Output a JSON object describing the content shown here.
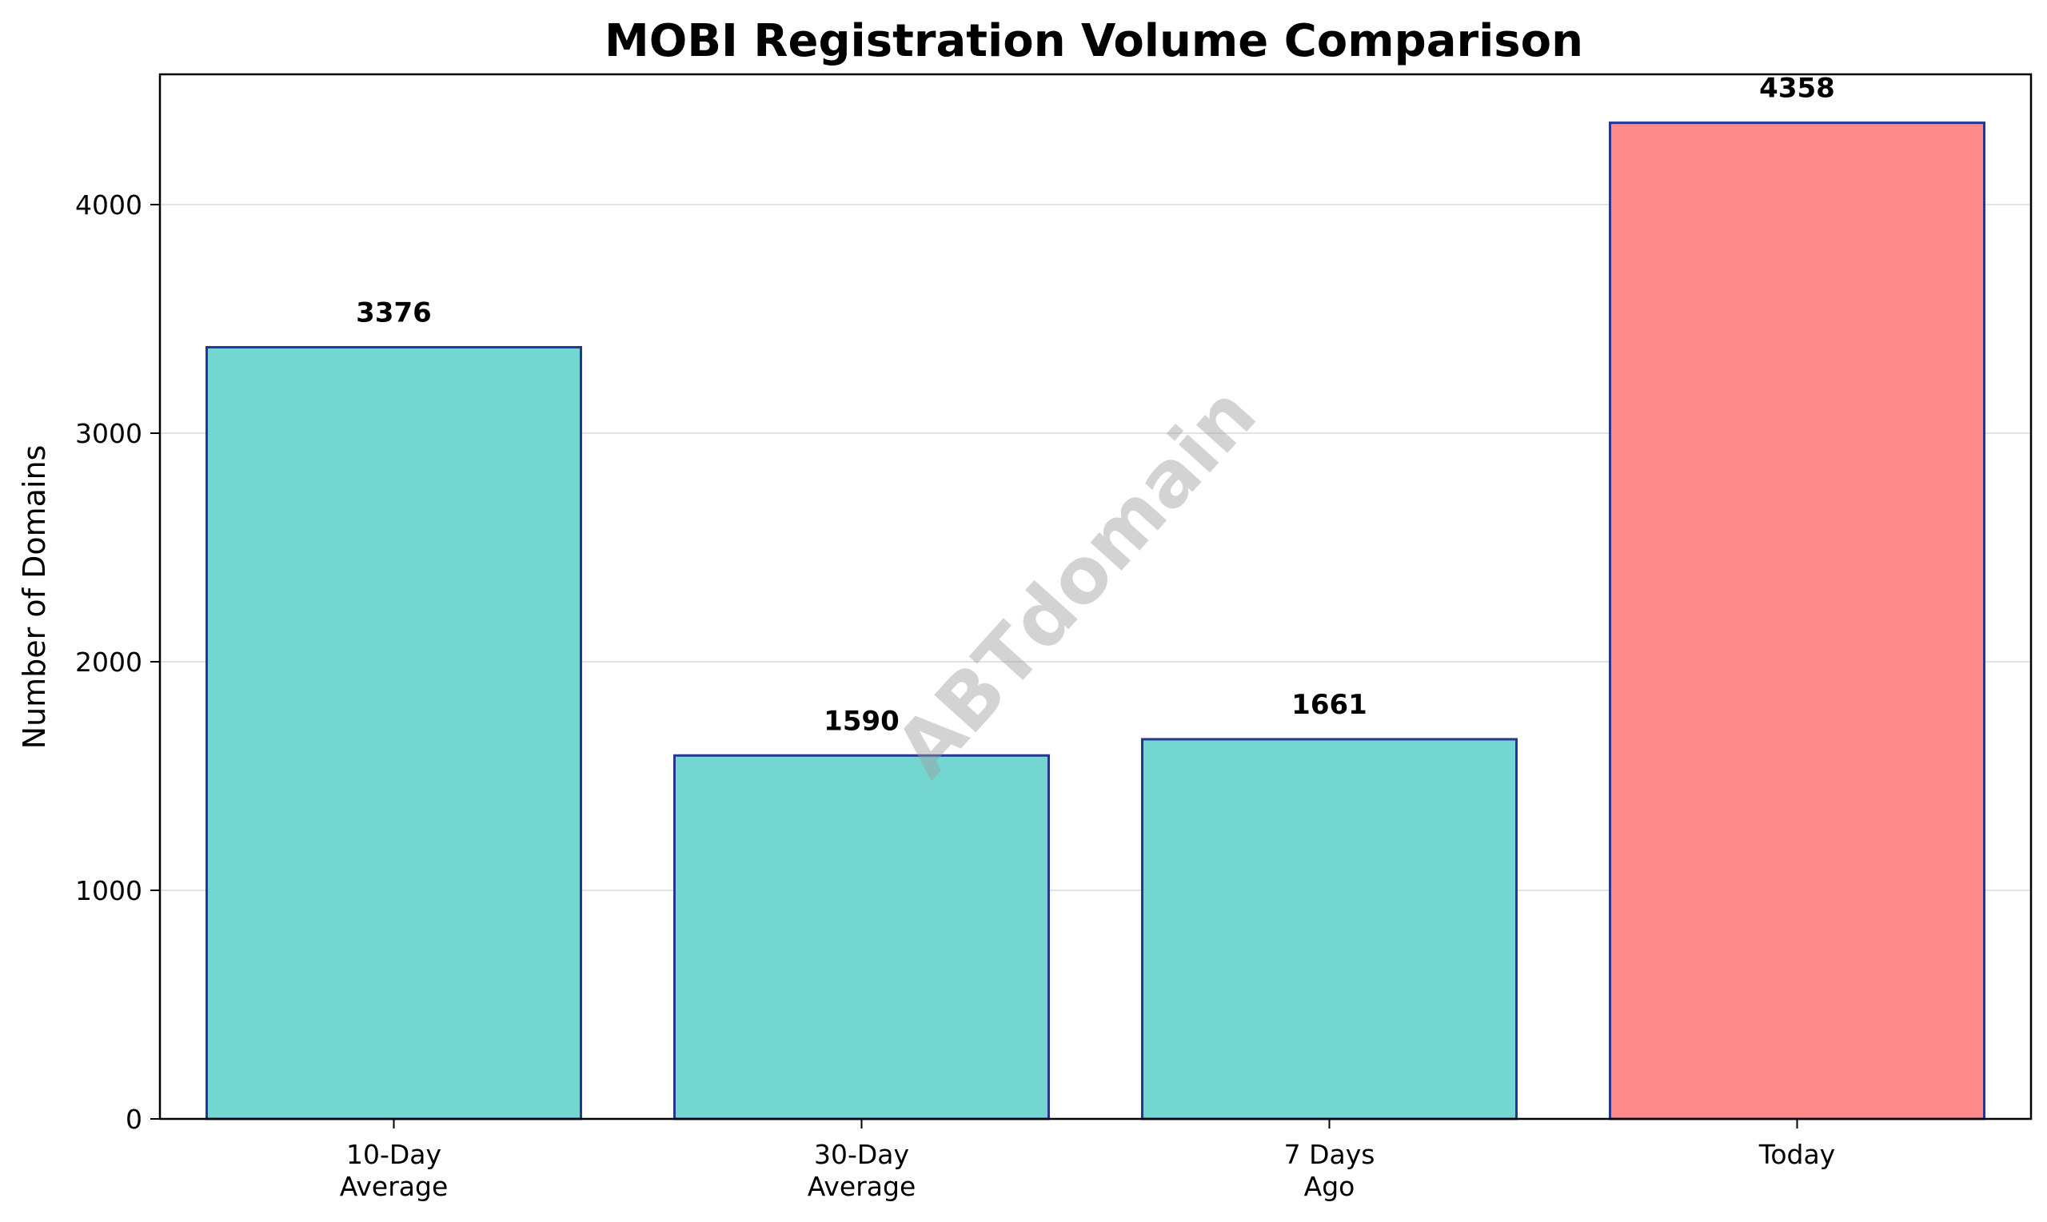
{
  "chart_data": {
    "type": "bar",
    "title": "MOBI Registration Volume Comparison",
    "xlabel": "",
    "ylabel": "Number of Domains",
    "categories": [
      [
        "10-Day",
        "Average"
      ],
      [
        "30-Day",
        "Average"
      ],
      [
        "7 Days",
        "Ago"
      ],
      [
        "Today"
      ]
    ],
    "values": [
      3376,
      1590,
      1661,
      4358
    ],
    "value_labels": [
      "3376",
      "1590",
      "1661",
      "4358"
    ],
    "bar_colors": [
      "#73d6d0",
      "#73d6d0",
      "#73d6d0",
      "#ff8a8a"
    ],
    "edge_color": "#283593",
    "ylim": [
      0,
      4570
    ],
    "yticks": [
      0,
      1000,
      2000,
      3000,
      4000
    ],
    "ytick_labels": [
      "0",
      "1000",
      "2000",
      "3000",
      "4000"
    ],
    "grid": "horizontal",
    "watermark": "ABTdomain"
  }
}
